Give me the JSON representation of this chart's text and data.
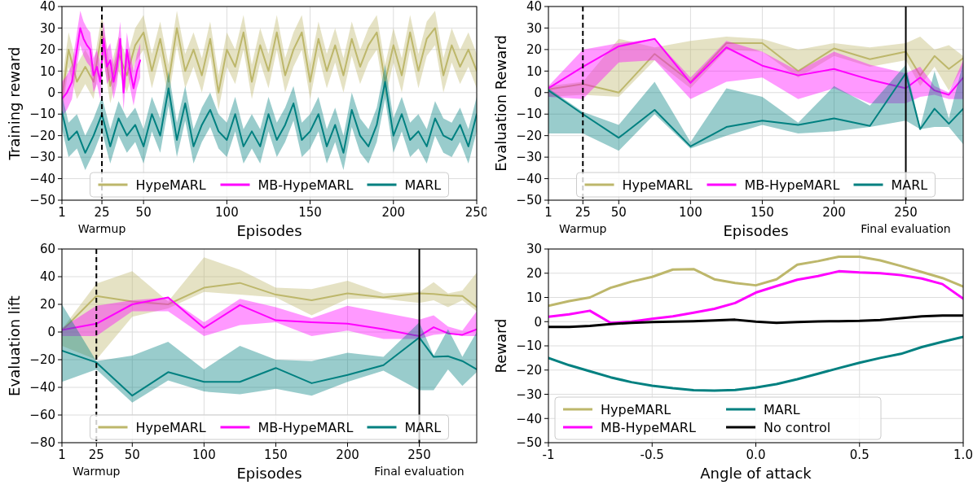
{
  "chart_data": [
    {
      "type": "line",
      "xlabel": "Episodes",
      "ylabel": "Training reward",
      "xlim": [
        1,
        250
      ],
      "ylim": [
        -50,
        40
      ],
      "xticks": [
        1,
        25,
        50,
        100,
        150,
        200,
        250
      ],
      "yticks": [
        -50,
        -40,
        -30,
        -20,
        -10,
        0,
        10,
        20,
        30,
        40
      ],
      "grid": true,
      "legend": "bottom",
      "ref_lines": [
        {
          "axis": "x",
          "value": 25,
          "label": "Warmup",
          "line_style": "dashed",
          "color": "#000000"
        }
      ],
      "series": [
        {
          "name": "HypeMARL",
          "color": "#bdb76b",
          "x": [
            1,
            5,
            10,
            15,
            20,
            25,
            30,
            35,
            40,
            45,
            50,
            55,
            60,
            65,
            70,
            75,
            80,
            85,
            90,
            95,
            100,
            105,
            110,
            115,
            120,
            125,
            130,
            135,
            140,
            145,
            150,
            155,
            160,
            165,
            170,
            175,
            180,
            185,
            190,
            195,
            200,
            205,
            210,
            215,
            220,
            225,
            230,
            235,
            240,
            245,
            250
          ],
          "values": [
            -3,
            20,
            5,
            12,
            5,
            28,
            3,
            18,
            8,
            22,
            28,
            10,
            25,
            5,
            30,
            10,
            20,
            8,
            25,
            0,
            20,
            12,
            28,
            5,
            22,
            10,
            28,
            8,
            20,
            28,
            5,
            25,
            10,
            22,
            8,
            25,
            12,
            22,
            28,
            5,
            22,
            8,
            28,
            10,
            25,
            30,
            8,
            22,
            12,
            20,
            10
          ],
          "lower": [
            -11,
            12,
            -3,
            4,
            -3,
            20,
            -5,
            10,
            0,
            14,
            20,
            2,
            17,
            -3,
            22,
            2,
            12,
            0,
            17,
            -8,
            12,
            4,
            20,
            -3,
            14,
            2,
            20,
            0,
            12,
            20,
            -3,
            17,
            2,
            14,
            0,
            17,
            4,
            14,
            20,
            -3,
            14,
            0,
            20,
            2,
            17,
            22,
            0,
            14,
            4,
            12,
            2
          ],
          "upper": [
            5,
            28,
            13,
            20,
            13,
            36,
            11,
            26,
            16,
            30,
            36,
            18,
            33,
            13,
            38,
            18,
            28,
            16,
            33,
            8,
            28,
            20,
            36,
            13,
            30,
            18,
            36,
            16,
            28,
            36,
            13,
            33,
            18,
            30,
            16,
            33,
            20,
            30,
            36,
            13,
            30,
            16,
            36,
            18,
            33,
            38,
            16,
            30,
            20,
            28,
            18
          ]
        },
        {
          "name": "MB-HypeMARL",
          "color": "#ff00ff",
          "x": [
            1,
            4,
            7,
            10,
            12,
            14,
            16,
            18,
            20,
            22,
            24,
            26,
            28,
            30,
            32,
            34,
            36,
            38,
            40,
            42,
            44,
            46,
            48
          ],
          "values": [
            -3,
            0,
            5,
            20,
            30,
            25,
            22,
            20,
            8,
            12,
            5,
            25,
            12,
            15,
            5,
            12,
            25,
            0,
            20,
            10,
            2,
            10,
            15
          ],
          "lower": [
            -11,
            -8,
            -3,
            12,
            22,
            17,
            14,
            12,
            0,
            4,
            -3,
            17,
            4,
            7,
            -3,
            4,
            17,
            -8,
            12,
            2,
            -6,
            2,
            7
          ],
          "upper": [
            5,
            8,
            13,
            28,
            38,
            33,
            30,
            28,
            16,
            20,
            13,
            33,
            20,
            23,
            13,
            20,
            33,
            8,
            28,
            18,
            10,
            18,
            23
          ]
        },
        {
          "name": "MARL",
          "color": "#008080",
          "x": [
            1,
            5,
            10,
            15,
            20,
            25,
            30,
            35,
            40,
            45,
            50,
            55,
            60,
            65,
            70,
            75,
            80,
            85,
            90,
            95,
            100,
            105,
            110,
            115,
            120,
            125,
            130,
            135,
            140,
            145,
            150,
            155,
            160,
            165,
            170,
            175,
            180,
            185,
            190,
            195,
            200,
            205,
            210,
            215,
            220,
            225,
            230,
            235,
            240,
            245,
            250
          ],
          "values": [
            -9,
            -22,
            -18,
            -28,
            -20,
            -10,
            -25,
            -12,
            -20,
            -15,
            -25,
            -10,
            -20,
            2,
            -22,
            -5,
            -25,
            -15,
            -8,
            -18,
            -22,
            -10,
            -25,
            -18,
            -25,
            -10,
            -22,
            -15,
            -5,
            -22,
            -18,
            -10,
            -25,
            -15,
            -28,
            -8,
            -20,
            -25,
            -15,
            5,
            -20,
            -10,
            -22,
            -18,
            -25,
            -12,
            -20,
            -22,
            -15,
            -25,
            -10
          ],
          "lower": [
            -17,
            -30,
            -26,
            -36,
            -28,
            -18,
            -33,
            -20,
            -28,
            -23,
            -33,
            -18,
            -28,
            -6,
            -30,
            -13,
            -33,
            -23,
            -16,
            -26,
            -30,
            -18,
            -33,
            -26,
            -33,
            -18,
            -30,
            -23,
            -13,
            -30,
            -26,
            -18,
            -33,
            -23,
            -36,
            -16,
            -28,
            -33,
            -23,
            -3,
            -28,
            -18,
            -30,
            -26,
            -33,
            -20,
            -28,
            -30,
            -23,
            -33,
            -18
          ],
          "upper": [
            -1,
            -14,
            -10,
            -20,
            -12,
            -2,
            -17,
            -4,
            -12,
            -7,
            -17,
            -2,
            -12,
            10,
            -14,
            3,
            -17,
            -7,
            0,
            -10,
            -14,
            -2,
            -17,
            -10,
            -17,
            -2,
            -14,
            -7,
            3,
            -14,
            -10,
            -2,
            -17,
            -7,
            -20,
            0,
            -12,
            -17,
            -7,
            13,
            -12,
            -2,
            -14,
            -10,
            -17,
            -4,
            -12,
            -14,
            -7,
            -17,
            -2
          ]
        }
      ]
    },
    {
      "type": "line",
      "xlabel": "Episodes",
      "ylabel": "Evaluation Reward",
      "xlim": [
        1,
        290
      ],
      "ylim": [
        -50,
        40
      ],
      "xticks": [
        1,
        25,
        50,
        100,
        150,
        200,
        250
      ],
      "yticks": [
        -50,
        -40,
        -30,
        -20,
        -10,
        0,
        10,
        20,
        30,
        40
      ],
      "grid": true,
      "legend": "bottom",
      "ref_lines": [
        {
          "axis": "x",
          "value": 25,
          "label": "Warmup",
          "line_style": "dashed",
          "color": "#000000"
        },
        {
          "axis": "x",
          "value": 250,
          "label": "Final evaluation",
          "line_style": "solid",
          "color": "#000000"
        }
      ],
      "x": [
        1,
        25,
        50,
        75,
        100,
        125,
        150,
        175,
        200,
        225,
        250,
        260,
        270,
        280,
        290
      ],
      "series": [
        {
          "name": "HypeMARL",
          "color": "#bdb76b",
          "values": [
            1.5,
            4,
            0,
            18,
            5,
            23,
            23,
            10,
            20.5,
            15.5,
            19,
            8,
            17,
            11,
            16
          ],
          "lower": [
            -2,
            -1,
            -2,
            15,
            2,
            20,
            19,
            7,
            17,
            12,
            15,
            3,
            12,
            1,
            12
          ],
          "upper": [
            3,
            5,
            25,
            21,
            24,
            26,
            25,
            20,
            23,
            21,
            23,
            26,
            20,
            22,
            17
          ]
        },
        {
          "name": "MB-HypeMARL",
          "color": "#ff00ff",
          "values": [
            2,
            12,
            21.5,
            25,
            4.5,
            21,
            12.5,
            8,
            11,
            6,
            2,
            7,
            1,
            -1,
            7
          ],
          "lower": [
            -2,
            -3,
            14,
            15,
            -3,
            5,
            7,
            -3,
            2,
            -5,
            -5,
            -2,
            -1,
            -3,
            -3
          ],
          "upper": [
            3,
            20,
            23,
            25,
            7,
            24,
            19,
            10,
            19,
            13,
            9,
            12,
            3,
            0,
            15
          ]
        },
        {
          "name": "MARL",
          "color": "#008080",
          "values": [
            1,
            -10,
            -21,
            -8,
            -25,
            -16,
            -13,
            -15,
            -12,
            -15.5,
            9,
            -17,
            -7.5,
            -14.5,
            -7.5
          ],
          "lower": [
            -19,
            -19,
            -27,
            -10,
            -26,
            -20,
            -15,
            -19,
            -18,
            -16,
            -13,
            -17,
            -16,
            -16,
            -24
          ],
          "upper": [
            2,
            -9,
            -15,
            5,
            -23,
            2,
            -2,
            -14,
            3,
            -6,
            13,
            -16,
            10,
            -12,
            14
          ]
        }
      ]
    },
    {
      "type": "line",
      "xlabel": "Episodes",
      "ylabel": "Evaluation lift",
      "xlim": [
        1,
        290
      ],
      "ylim": [
        -80,
        60
      ],
      "xticks": [
        1,
        25,
        50,
        100,
        150,
        200,
        250
      ],
      "yticks": [
        -80,
        -60,
        -40,
        -20,
        0,
        20,
        40,
        60
      ],
      "grid": true,
      "legend": "bottom",
      "ref_lines": [
        {
          "axis": "x",
          "value": 25,
          "label": "Warmup",
          "line_style": "dashed",
          "color": "#000000"
        },
        {
          "axis": "x",
          "value": 250,
          "label": "Final evaluation",
          "line_style": "solid",
          "color": "#000000"
        }
      ],
      "x": [
        1,
        25,
        50,
        75,
        100,
        125,
        150,
        175,
        200,
        225,
        250,
        260,
        270,
        280,
        290
      ],
      "series": [
        {
          "name": "HypeMARL",
          "color": "#bdb76b",
          "values": [
            1,
            26,
            22,
            20,
            32,
            35.5,
            27,
            23,
            28,
            25,
            28,
            27.5,
            26.5,
            26,
            18
          ],
          "lower": [
            -10,
            -20,
            11,
            17,
            29,
            27,
            25,
            12,
            24,
            24,
            21,
            23,
            18,
            23,
            15
          ],
          "upper": [
            2,
            35,
            44,
            22,
            54,
            45,
            32,
            31,
            37,
            28,
            29,
            36,
            28,
            30,
            43
          ]
        },
        {
          "name": "MB-HypeMARL",
          "color": "#ff00ff",
          "values": [
            1.5,
            6,
            20,
            25,
            3,
            19.5,
            8.5,
            7,
            6,
            2,
            -3,
            3.5,
            -1,
            -2,
            2
          ],
          "lower": [
            -3,
            -3,
            15,
            15,
            -3,
            5,
            7,
            -3,
            1,
            -5,
            -5,
            -2,
            -1,
            -3,
            -3
          ],
          "upper": [
            3,
            19,
            23,
            25,
            7,
            24,
            18,
            10,
            19,
            14,
            9,
            12,
            4,
            1,
            15
          ]
        },
        {
          "name": "MARL",
          "color": "#008080",
          "values": [
            -13.5,
            -22,
            -46,
            -29,
            -36,
            -36,
            -26,
            -37,
            -31,
            -24,
            -4,
            -18,
            -17.5,
            -21,
            -27
          ],
          "lower": [
            -36,
            -27,
            -51,
            -35,
            -43,
            -45,
            -41,
            -46,
            -36,
            -28,
            -42,
            -42,
            -27,
            -39,
            -29
          ],
          "upper": [
            20,
            -21,
            -17,
            -7,
            -27,
            -10,
            -20,
            -21,
            -15,
            -18,
            7,
            -17,
            2,
            -18,
            0
          ]
        }
      ]
    },
    {
      "type": "line",
      "xlabel": "Angle of attack",
      "ylabel": "Reward",
      "xlim": [
        -1,
        1
      ],
      "ylim": [
        -50,
        30
      ],
      "xticks": [
        {
          "value": -1,
          "label": "-1"
        },
        {
          "value": -0.5,
          "label": "-0.5"
        },
        {
          "value": 0,
          "label": "0.0"
        },
        {
          "value": 0.5,
          "label": "0.5"
        },
        {
          "value": 1,
          "label": "1.0"
        }
      ],
      "yticks": [
        -50,
        -40,
        -30,
        -20,
        -10,
        0,
        10,
        20,
        30
      ],
      "grid": true,
      "legend": "bottom left",
      "x": [
        -1,
        -0.9,
        -0.8,
        -0.7,
        -0.6,
        -0.5,
        -0.4,
        -0.3,
        -0.2,
        -0.1,
        0,
        0.1,
        0.2,
        0.3,
        0.4,
        0.5,
        0.6,
        0.7,
        0.8,
        0.9,
        1
      ],
      "series": [
        {
          "name": "HypeMARL",
          "color": "#bdb76b",
          "values": [
            6.5,
            8.5,
            10,
            14,
            16.5,
            18.5,
            21.5,
            21.7,
            17.5,
            16,
            15,
            17.5,
            23.5,
            25,
            26.8,
            26.8,
            25.3,
            23,
            20.5,
            18,
            14.5
          ]
        },
        {
          "name": "MB-HypeMARL",
          "color": "#ff00ff",
          "values": [
            2,
            3,
            4.5,
            -0.5,
            0,
            1.2,
            2.2,
            3.7,
            5.3,
            7.7,
            12,
            14.7,
            17.3,
            18.8,
            20.8,
            20.3,
            20,
            19.2,
            17.8,
            15.5,
            9.5
          ]
        },
        {
          "name": "MARL",
          "color": "#008080",
          "values": [
            -15,
            -18,
            -20.5,
            -23,
            -25,
            -26.5,
            -27.5,
            -28.3,
            -28.5,
            -28.2,
            -27.2,
            -25.8,
            -23.8,
            -21.5,
            -19.2,
            -17,
            -15,
            -13.3,
            -10.5,
            -8.3,
            -6.3
          ]
        },
        {
          "name": "No control",
          "color": "#000000",
          "values": [
            -2.2,
            -2.2,
            -1.8,
            -1,
            -0.5,
            -0.2,
            0,
            0.2,
            0.5,
            0.8,
            0,
            -0.5,
            -0.2,
            0.1,
            0.2,
            0.3,
            0.7,
            1.4,
            2.2,
            2.5,
            2.5
          ]
        }
      ]
    }
  ]
}
